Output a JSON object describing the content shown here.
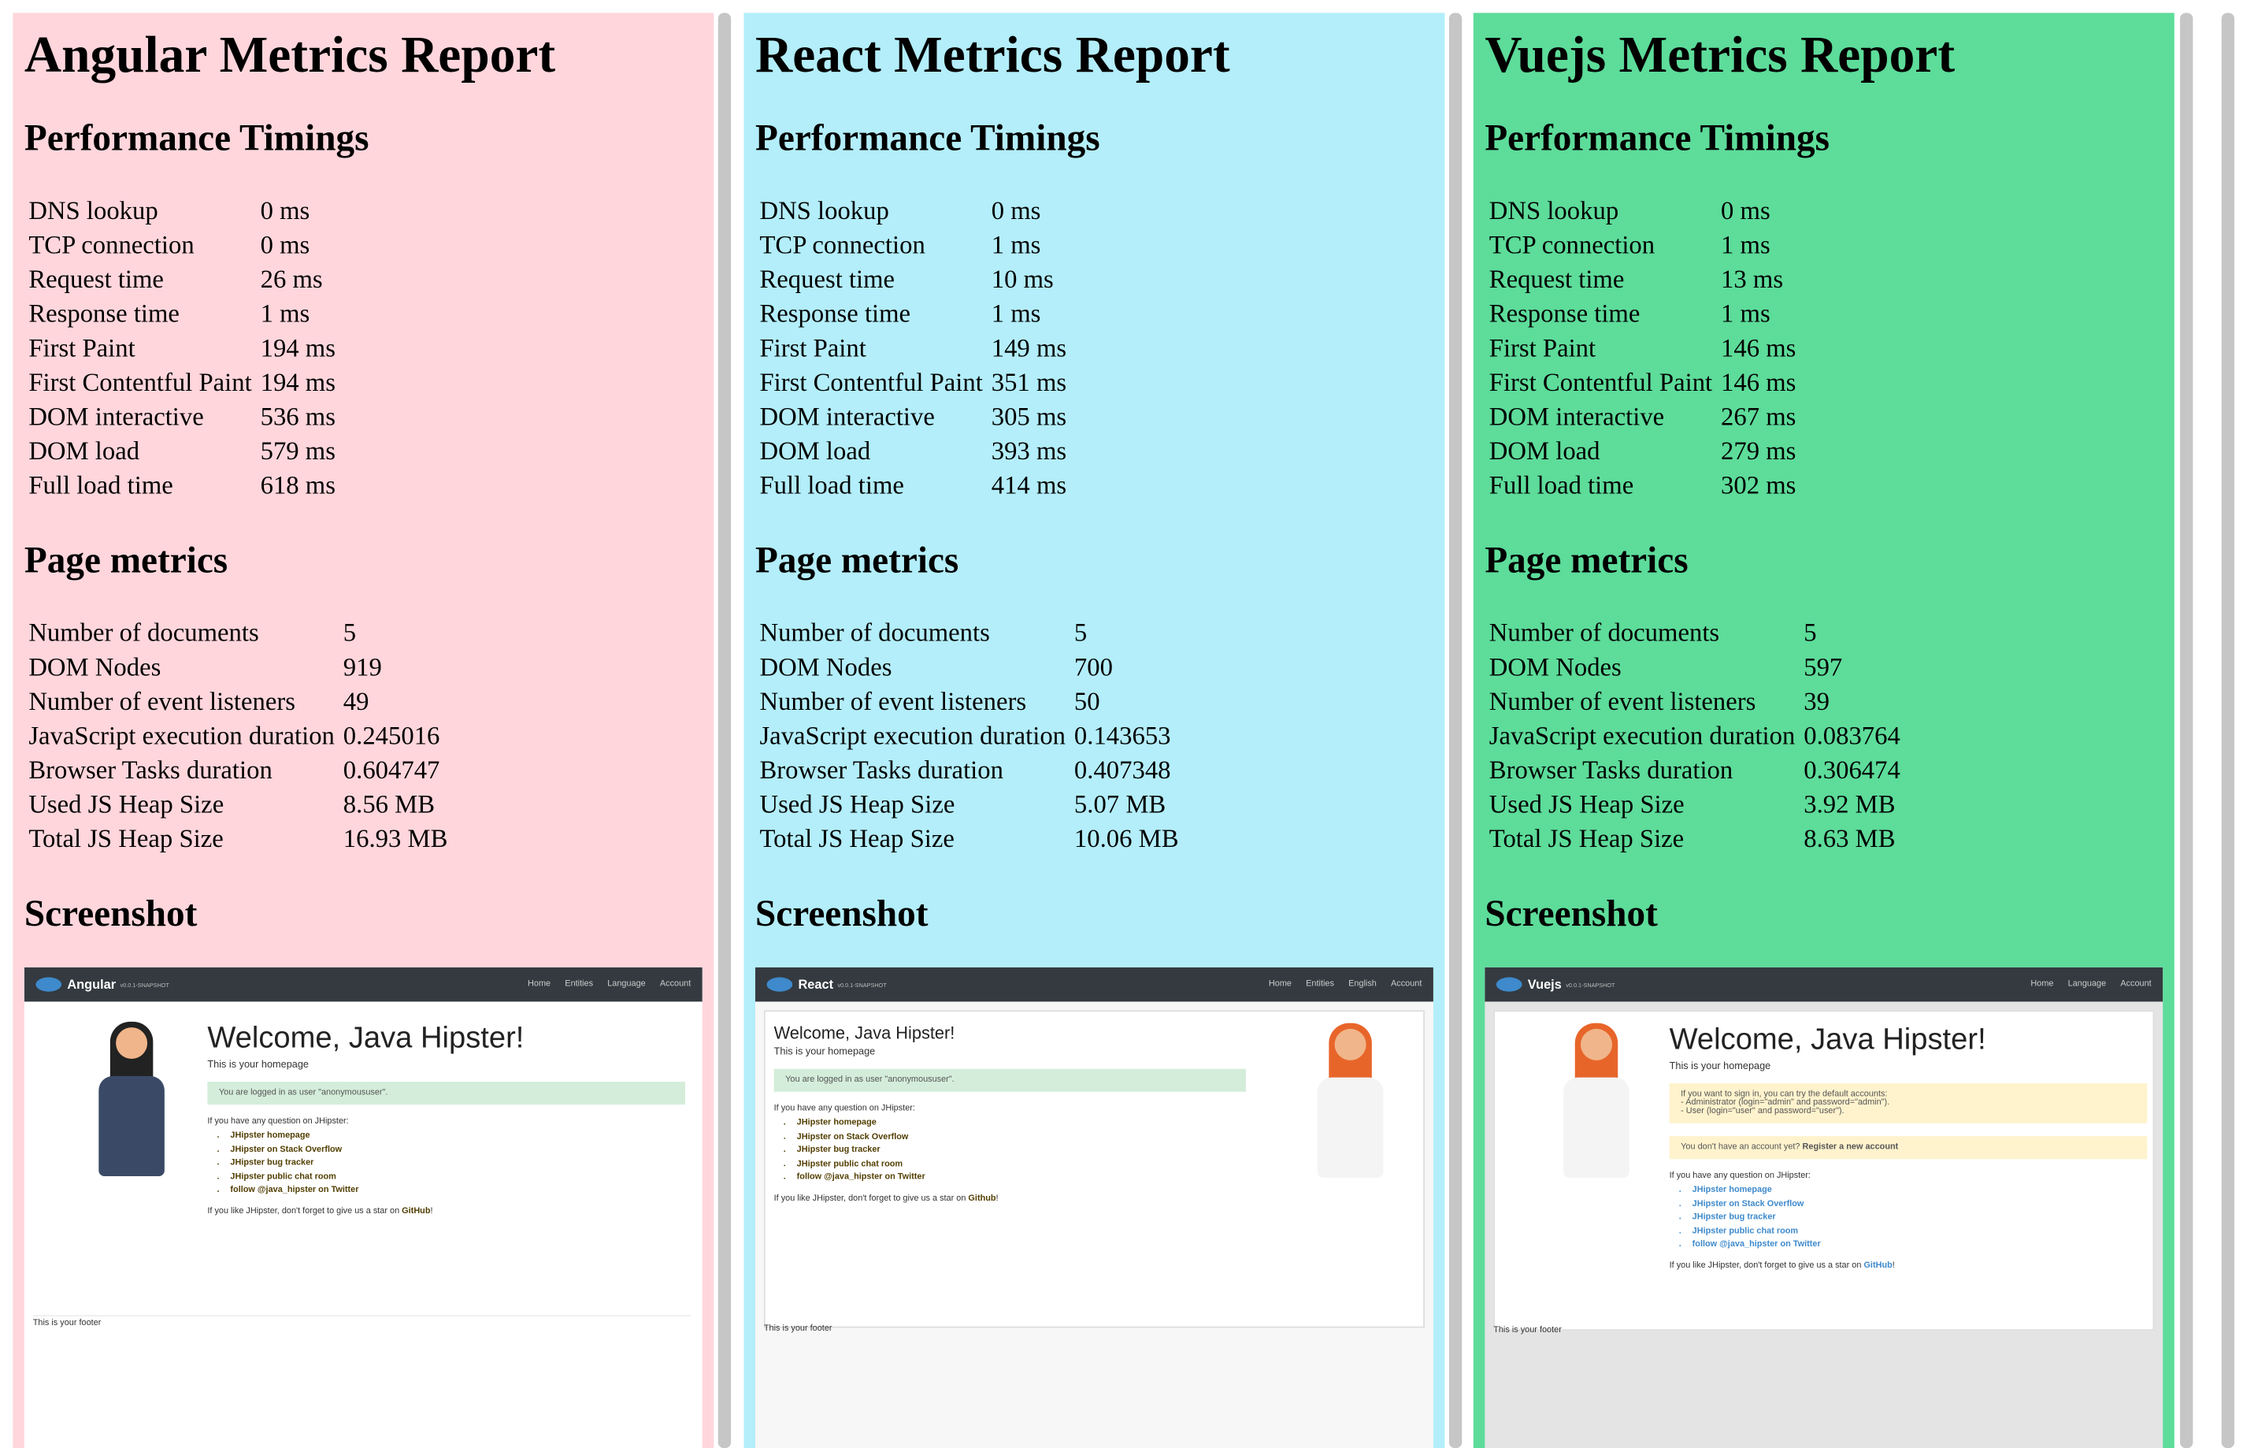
{
  "panels": [
    {
      "title": "Angular Metrics Report",
      "timings": {
        "heading": "Performance Timings",
        "rows": [
          [
            "DNS lookup",
            "0 ms"
          ],
          [
            "TCP connection",
            "0 ms"
          ],
          [
            "Request time",
            "26 ms"
          ],
          [
            "Response time",
            "1 ms"
          ],
          [
            "First Paint",
            "194 ms"
          ],
          [
            "First Contentful Paint",
            "194 ms"
          ],
          [
            "DOM interactive",
            "536 ms"
          ],
          [
            "DOM load",
            "579 ms"
          ],
          [
            "Full load time",
            "618 ms"
          ]
        ]
      },
      "metrics": {
        "heading": "Page metrics",
        "rows": [
          [
            "Number of documents",
            "5"
          ],
          [
            "DOM Nodes",
            "919"
          ],
          [
            "Number of event listeners",
            "49"
          ],
          [
            "JavaScript execution duration",
            "0.245016"
          ],
          [
            "Browser Tasks duration",
            "0.604747"
          ],
          [
            "Used JS Heap Size",
            "8.56 MB"
          ],
          [
            "Total JS Heap Size",
            "16.93 MB"
          ]
        ]
      },
      "screenshot": {
        "heading": "Screenshot",
        "brand": "Angular",
        "version": "v0.0.1-SNAPSHOT",
        "nav": [
          "Home",
          "Entities",
          "Language",
          "Account"
        ],
        "welcome": "Welcome, Java Hipster!",
        "subtitle": "This is your homepage",
        "alerts": [
          "You are logged in as user \"anonymoususer\"."
        ],
        "question": "If you have any question on JHipster:",
        "links": [
          "JHipster homepage",
          "JHipster on Stack Overflow",
          "JHipster bug tracker",
          "JHipster public chat room",
          "follow @java_hipster on Twitter"
        ],
        "star_text": "If you like JHipster, don't forget to give us a star on",
        "star_link": "GitHub",
        "star_end": "!",
        "footer": "This is your footer"
      }
    },
    {
      "title": "React Metrics Report",
      "timings": {
        "heading": "Performance Timings",
        "rows": [
          [
            "DNS lookup",
            "0 ms"
          ],
          [
            "TCP connection",
            "1 ms"
          ],
          [
            "Request time",
            "10 ms"
          ],
          [
            "Response time",
            "1 ms"
          ],
          [
            "First Paint",
            "149 ms"
          ],
          [
            "First Contentful Paint",
            "351 ms"
          ],
          [
            "DOM interactive",
            "305 ms"
          ],
          [
            "DOM load",
            "393 ms"
          ],
          [
            "Full load time",
            "414 ms"
          ]
        ]
      },
      "metrics": {
        "heading": "Page metrics",
        "rows": [
          [
            "Number of documents",
            "5"
          ],
          [
            "DOM Nodes",
            "700"
          ],
          [
            "Number of event listeners",
            "50"
          ],
          [
            "JavaScript execution duration",
            "0.143653"
          ],
          [
            "Browser Tasks duration",
            "0.407348"
          ],
          [
            "Used JS Heap Size",
            "5.07 MB"
          ],
          [
            "Total JS Heap Size",
            "10.06 MB"
          ]
        ]
      },
      "screenshot": {
        "heading": "Screenshot",
        "brand": "React",
        "version": "v0.0.1-SNAPSHOT",
        "nav": [
          "Home",
          "Entities",
          "English",
          "Account"
        ],
        "welcome": "Welcome, Java Hipster!",
        "subtitle": "This is your homepage",
        "alerts": [
          "You are logged in as user \"anonymoususer\"."
        ],
        "question": "If you have any question on JHipster:",
        "links": [
          "JHipster homepage",
          "JHipster on Stack Overflow",
          "JHipster bug tracker",
          "JHipster public chat room",
          "follow @java_hipster on Twitter"
        ],
        "star_text": "If you like JHipster, don't forget to give us a star on",
        "star_link": "Github",
        "star_end": "!",
        "footer": "This is your footer"
      }
    },
    {
      "title": "Vuejs Metrics Report",
      "timings": {
        "heading": "Performance Timings",
        "rows": [
          [
            "DNS lookup",
            "0 ms"
          ],
          [
            "TCP connection",
            "1 ms"
          ],
          [
            "Request time",
            "13 ms"
          ],
          [
            "Response time",
            "1 ms"
          ],
          [
            "First Paint",
            "146 ms"
          ],
          [
            "First Contentful Paint",
            "146 ms"
          ],
          [
            "DOM interactive",
            "267 ms"
          ],
          [
            "DOM load",
            "279 ms"
          ],
          [
            "Full load time",
            "302 ms"
          ]
        ]
      },
      "metrics": {
        "heading": "Page metrics",
        "rows": [
          [
            "Number of documents",
            "5"
          ],
          [
            "DOM Nodes",
            "597"
          ],
          [
            "Number of event listeners",
            "39"
          ],
          [
            "JavaScript execution duration",
            "0.083764"
          ],
          [
            "Browser Tasks duration",
            "0.306474"
          ],
          [
            "Used JS Heap Size",
            "3.92 MB"
          ],
          [
            "Total JS Heap Size",
            "8.63 MB"
          ]
        ]
      },
      "screenshot": {
        "heading": "Screenshot",
        "brand": "Vuejs",
        "version": "v0.0.1-SNAPSHOT",
        "nav": [
          "Home",
          "Language",
          "Account"
        ],
        "welcome": "Welcome, Java Hipster!",
        "subtitle": "This is your homepage",
        "alerts": [
          "If you want to sign in, you can try the default accounts:",
          "- Administrator (login=\"admin\" and password=\"admin\").",
          "- User (login=\"user\" and password=\"user\")."
        ],
        "alert2": "You don't have an account yet?",
        "alert2_link": "Register a new account",
        "question": "If you have any question on JHipster:",
        "links": [
          "JHipster homepage",
          "JHipster on Stack Overflow",
          "JHipster bug tracker",
          "JHipster public chat room",
          "follow @java_hipster on Twitter"
        ],
        "star_text": "If you like JHipster, don't forget to give us a star on",
        "star_link": "GitHub",
        "star_end": "!",
        "footer": "This is your footer"
      }
    }
  ]
}
